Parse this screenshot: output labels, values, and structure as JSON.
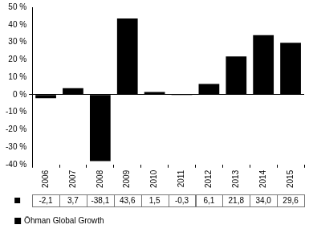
{
  "chart_data": {
    "type": "bar",
    "categories": [
      "2006",
      "2007",
      "2008",
      "2009",
      "2010",
      "2011",
      "2012",
      "2013",
      "2014",
      "2015"
    ],
    "series": [
      {
        "name": "Öhman Global Growth",
        "color": "#000000",
        "values": [
          -2.1,
          3.7,
          -38.1,
          43.6,
          1.5,
          -0.3,
          6.1,
          21.8,
          34.0,
          29.6
        ],
        "value_labels": [
          "-2,1",
          "3,7",
          "-38,1",
          "43,6",
          "1,5",
          "-0,3",
          "6,1",
          "21,8",
          "34,0",
          "29,6"
        ]
      }
    ],
    "ylim": [
      -40,
      50
    ],
    "yticks": [
      {
        "value": -40,
        "label": "-40 %"
      },
      {
        "value": -30,
        "label": "-30 %"
      },
      {
        "value": -20,
        "label": "-20 %"
      },
      {
        "value": -10,
        "label": "-10 %"
      },
      {
        "value": 0,
        "label": "0 %"
      },
      {
        "value": 10,
        "label": "10 %"
      },
      {
        "value": 20,
        "label": "20 %"
      },
      {
        "value": 30,
        "label": "30 %"
      },
      {
        "value": 40,
        "label": "40 %"
      },
      {
        "value": 50,
        "label": "50 %"
      }
    ],
    "grid": false,
    "data_labels": true,
    "legend": "bottom"
  }
}
